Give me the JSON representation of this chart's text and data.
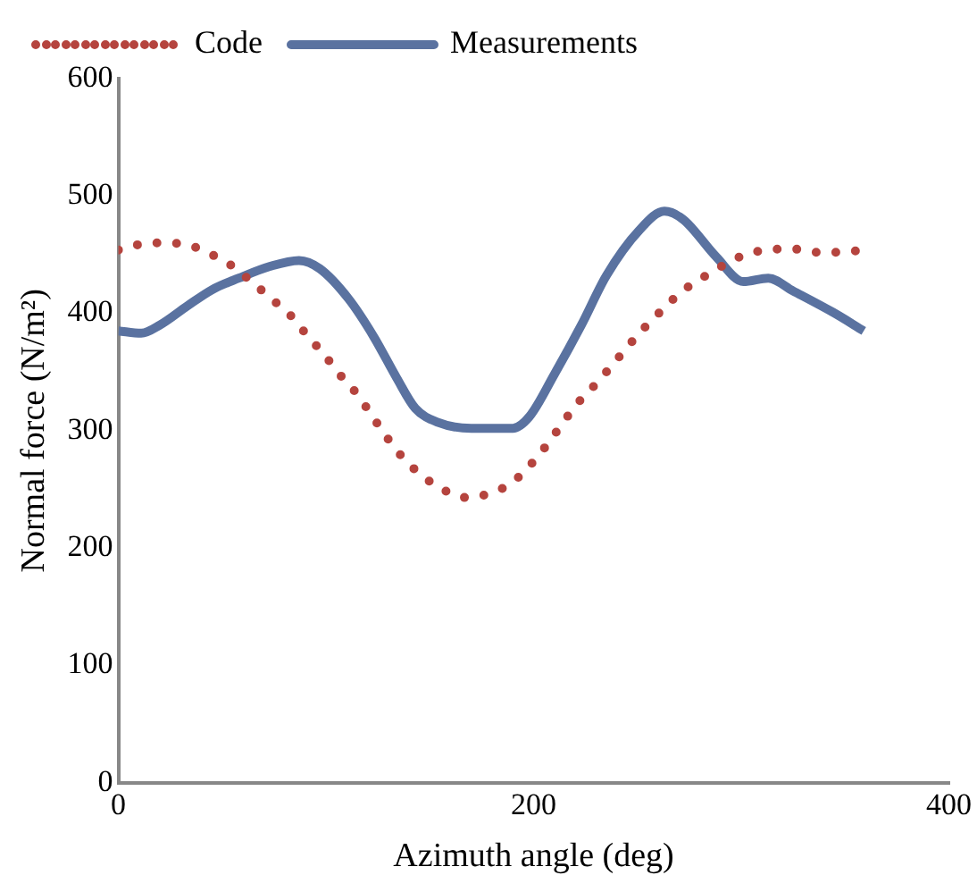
{
  "chart_data": {
    "type": "line",
    "xlabel": "Azimuth angle (deg)",
    "ylabel": "Normal force (N/m²)",
    "xlim": [
      0,
      400
    ],
    "xticks": [
      0,
      200,
      400
    ],
    "ylim": [
      0,
      600
    ],
    "yticks": [
      0,
      100,
      200,
      300,
      400,
      500,
      600
    ],
    "grid": false,
    "legend": "top left",
    "marker": "none",
    "series": [
      {
        "name": "Code",
        "color": "#b5443e",
        "line_style": "dotted",
        "x": [
          0,
          11,
          22,
          34,
          45,
          55,
          64,
          74,
          83,
          91,
          99,
          107,
          115,
          122,
          129,
          137,
          146,
          156,
          167,
          178,
          189,
          198,
          206,
          213,
          221,
          229,
          237,
          245,
          253,
          262,
          271,
          281,
          302,
          313,
          324,
          336,
          347,
          359
        ],
        "values": [
          454,
          459,
          460,
          458,
          450,
          440,
          427,
          412,
          398,
          381,
          365,
          347,
          331,
          313,
          295,
          277,
          262,
          250,
          243,
          246,
          255,
          270,
          287,
          304,
          323,
          338,
          354,
          371,
          387,
          403,
          418,
          430,
          450,
          454,
          455,
          452,
          452,
          454
        ]
      },
      {
        "name": "Measurements",
        "color": "#5a72a0",
        "line_style": "solid",
        "x": [
          0,
          11,
          20,
          33,
          45,
          58,
          73,
          87,
          97,
          111,
          123,
          134,
          143,
          154,
          170,
          190,
          198,
          210,
          223,
          235,
          251,
          263,
          272,
          288,
          301,
          313,
          325,
          344,
          359
        ],
        "values": [
          385,
          383,
          390,
          406,
          420,
          430,
          440,
          445,
          438,
          412,
          380,
          345,
          319,
          307,
          302,
          302,
          312,
          348,
          390,
          432,
          471,
          487,
          480,
          448,
          427,
          430,
          419,
          401,
          385
        ]
      }
    ]
  }
}
